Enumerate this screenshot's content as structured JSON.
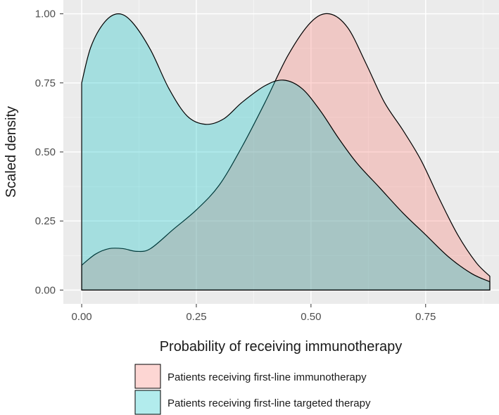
{
  "chart_data": {
    "type": "area",
    "title": "",
    "xlabel": "Probability of receiving immunotherapy",
    "ylabel": "Scaled density",
    "xlim": [
      -0.04,
      0.91
    ],
    "ylim": [
      -0.05,
      1.05
    ],
    "x_ticks": [
      0.0,
      0.25,
      0.5,
      0.75
    ],
    "x_tick_labels": [
      "0.00",
      "0.25",
      "0.50",
      "0.75"
    ],
    "y_ticks": [
      0.0,
      0.25,
      0.5,
      0.75,
      1.0
    ],
    "y_tick_labels": [
      "0.00",
      "0.25",
      "0.50",
      "0.75",
      "1.00"
    ],
    "grid": true,
    "legend_position": "bottom",
    "series": [
      {
        "name": "Patients receiving first-line immunotherapy",
        "color": "#F8766D",
        "points": [
          [
            0.0,
            0.09
          ],
          [
            0.03,
            0.13
          ],
          [
            0.06,
            0.15
          ],
          [
            0.09,
            0.15
          ],
          [
            0.12,
            0.14
          ],
          [
            0.15,
            0.15
          ],
          [
            0.2,
            0.22
          ],
          [
            0.25,
            0.29
          ],
          [
            0.3,
            0.38
          ],
          [
            0.35,
            0.52
          ],
          [
            0.4,
            0.68
          ],
          [
            0.45,
            0.85
          ],
          [
            0.5,
            0.97
          ],
          [
            0.54,
            1.0
          ],
          [
            0.58,
            0.95
          ],
          [
            0.62,
            0.82
          ],
          [
            0.66,
            0.68
          ],
          [
            0.7,
            0.58
          ],
          [
            0.74,
            0.47
          ],
          [
            0.78,
            0.33
          ],
          [
            0.82,
            0.2
          ],
          [
            0.86,
            0.1
          ],
          [
            0.89,
            0.05
          ]
        ]
      },
      {
        "name": "Patients receiving first-line targeted therapy",
        "color": "#00BFC4",
        "points": [
          [
            0.0,
            0.75
          ],
          [
            0.02,
            0.88
          ],
          [
            0.05,
            0.97
          ],
          [
            0.08,
            1.0
          ],
          [
            0.11,
            0.97
          ],
          [
            0.15,
            0.87
          ],
          [
            0.19,
            0.73
          ],
          [
            0.23,
            0.63
          ],
          [
            0.27,
            0.6
          ],
          [
            0.31,
            0.62
          ],
          [
            0.35,
            0.68
          ],
          [
            0.4,
            0.74
          ],
          [
            0.44,
            0.76
          ],
          [
            0.48,
            0.73
          ],
          [
            0.52,
            0.65
          ],
          [
            0.56,
            0.55
          ],
          [
            0.6,
            0.46
          ],
          [
            0.65,
            0.37
          ],
          [
            0.7,
            0.28
          ],
          [
            0.75,
            0.2
          ],
          [
            0.8,
            0.12
          ],
          [
            0.85,
            0.06
          ],
          [
            0.89,
            0.03
          ]
        ]
      }
    ]
  }
}
